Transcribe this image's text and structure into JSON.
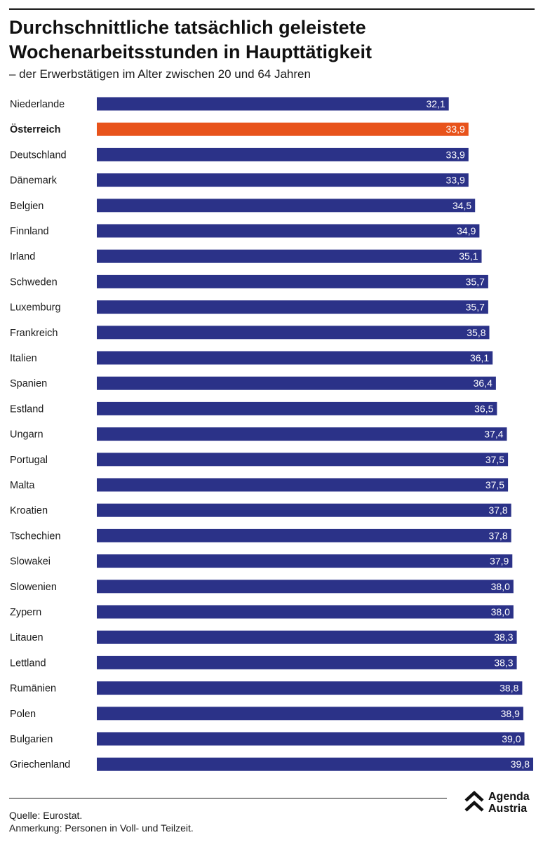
{
  "header": {
    "title": "Durchschnittliche tatsächlich geleistete Wochenarbeitsstunden in Haupttätigkeit",
    "subtitle": "– der Erwerbstätigen im Alter zwischen 20 und 64 Jahren"
  },
  "footer": {
    "source": "Quelle: Eurostat.",
    "note": "Anmerkung: Personen in Voll- und Teilzeit.",
    "logo_line1": "Agenda",
    "logo_line2": "Austria"
  },
  "colors": {
    "bar": "#2b3288",
    "highlight": "#e8531b",
    "bar_label": "#ffffff",
    "text": "#1a1a1a"
  },
  "chart_data": {
    "type": "bar",
    "orientation": "horizontal",
    "title": "Durchschnittliche tatsächlich geleistete Wochenarbeitsstunden in Haupttätigkeit",
    "subtitle": "– der Erwerbstätigen im Alter zwischen 20 und 64 Jahren",
    "xlabel": "",
    "ylabel": "",
    "xlim": [
      0,
      39.8
    ],
    "grid": false,
    "highlight": "Österreich",
    "categories": [
      "Niederlande",
      "Österreich",
      "Deutschland",
      "Dänemark",
      "Belgien",
      "Finnland",
      "Irland",
      "Schweden",
      "Luxemburg",
      "Frankreich",
      "Italien",
      "Spanien",
      "Estland",
      "Ungarn",
      "Portugal",
      "Malta",
      "Kroatien",
      "Tschechien",
      "Slowakei",
      "Slowenien",
      "Zypern",
      "Litauen",
      "Lettland",
      "Rumänien",
      "Polen",
      "Bulgarien",
      "Griechenland"
    ],
    "values": [
      32.1,
      33.9,
      33.9,
      33.9,
      34.5,
      34.9,
      35.1,
      35.7,
      35.7,
      35.8,
      36.1,
      36.4,
      36.5,
      37.4,
      37.5,
      37.5,
      37.8,
      37.8,
      37.9,
      38.0,
      38.0,
      38.3,
      38.3,
      38.8,
      38.9,
      39.0,
      39.8
    ],
    "labels": [
      "32,1",
      "33,9",
      "33,9",
      "33,9",
      "34,5",
      "34,9",
      "35,1",
      "35,7",
      "35,7",
      "35,8",
      "36,1",
      "36,4",
      "36,5",
      "37,4",
      "37,5",
      "37,5",
      "37,8",
      "37,8",
      "37,9",
      "38,0",
      "38,0",
      "38,3",
      "38,3",
      "38,8",
      "38,9",
      "39,0",
      "39,8"
    ]
  }
}
